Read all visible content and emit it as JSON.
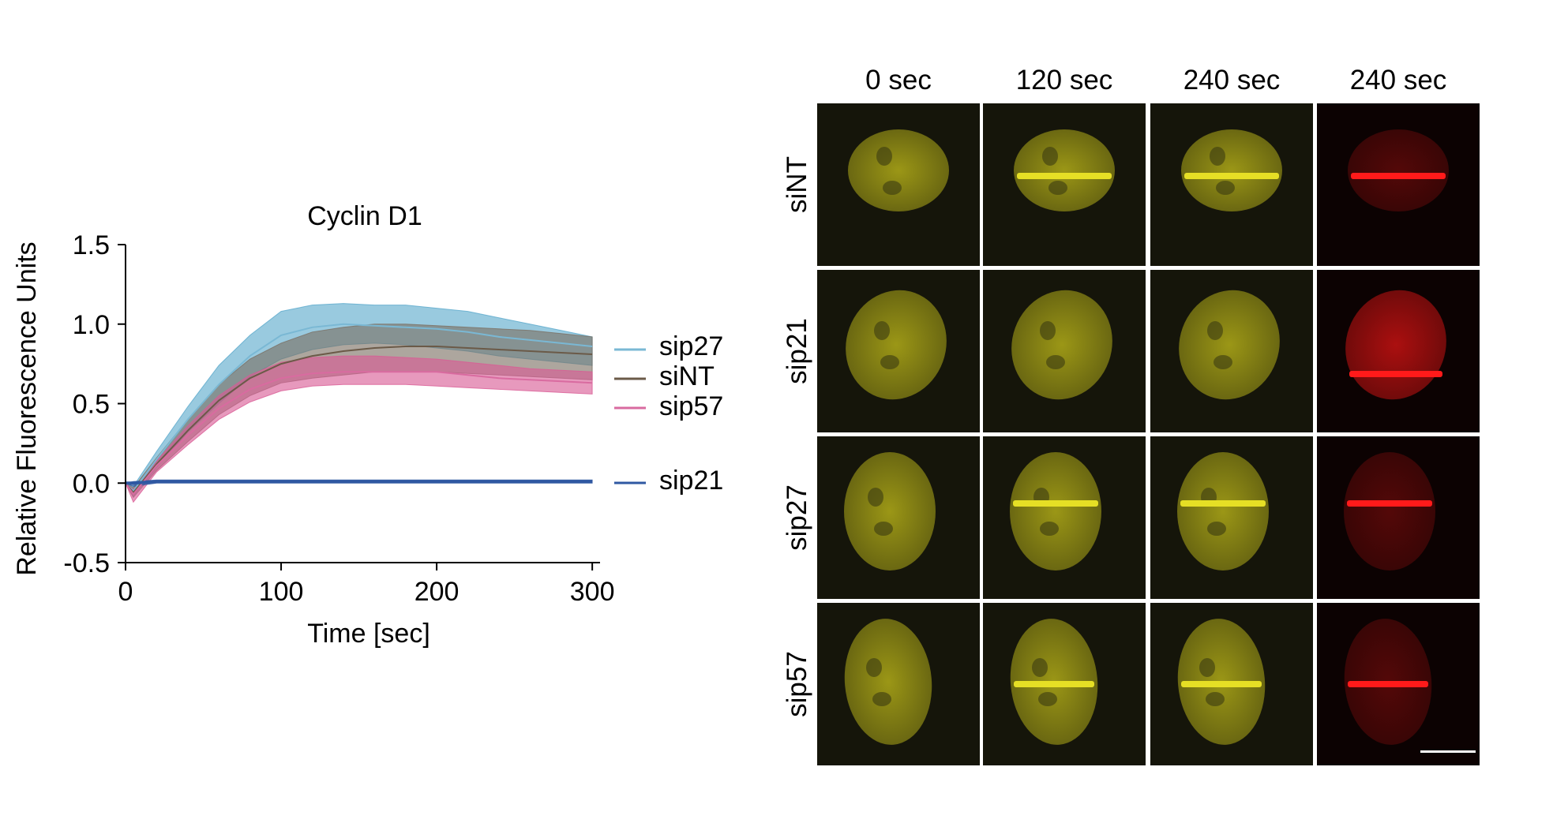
{
  "chart_data": {
    "type": "area",
    "title": "Cyclin D1",
    "xlabel": "Time [sec]",
    "ylabel": "Relative Fluorescence Units",
    "xlim": [
      0,
      305
    ],
    "ylim": [
      -0.5,
      1.5
    ],
    "xticks": [
      "0",
      "100",
      "200",
      "300"
    ],
    "yticks": [
      "1.5",
      "1.0",
      "0.5",
      "0.0",
      "-0.5"
    ],
    "legend_placement": "right",
    "x": [
      0,
      5,
      20,
      40,
      60,
      80,
      100,
      120,
      140,
      160,
      180,
      200,
      220,
      240,
      260,
      280,
      300
    ],
    "series": [
      {
        "name": "sip27",
        "color": "#7ab8d4",
        "band_color": "#5aa9cc",
        "mean": [
          0,
          -0.05,
          0.15,
          0.4,
          0.62,
          0.8,
          0.93,
          0.98,
          1.0,
          0.99,
          0.98,
          0.97,
          0.95,
          0.92,
          0.9,
          0.88,
          0.86
        ],
        "upper": [
          0,
          -0.02,
          0.2,
          0.48,
          0.74,
          0.93,
          1.08,
          1.12,
          1.13,
          1.12,
          1.12,
          1.1,
          1.08,
          1.04,
          1.0,
          0.96,
          0.92
        ],
        "lower": [
          0,
          -0.08,
          0.1,
          0.32,
          0.5,
          0.67,
          0.78,
          0.84,
          0.87,
          0.88,
          0.87,
          0.85,
          0.83,
          0.8,
          0.78,
          0.76,
          0.74
        ]
      },
      {
        "name": "siNT",
        "color": "#6b5a48",
        "band_color": "#7a6f63",
        "mean": [
          0,
          -0.06,
          0.12,
          0.33,
          0.52,
          0.66,
          0.75,
          0.8,
          0.83,
          0.85,
          0.86,
          0.86,
          0.85,
          0.84,
          0.83,
          0.82,
          0.81
        ],
        "upper": [
          0,
          -0.03,
          0.16,
          0.4,
          0.62,
          0.78,
          0.88,
          0.95,
          0.98,
          1.0,
          1.0,
          0.99,
          0.98,
          0.97,
          0.96,
          0.94,
          0.92
        ],
        "lower": [
          0,
          -0.09,
          0.08,
          0.26,
          0.43,
          0.55,
          0.63,
          0.66,
          0.68,
          0.7,
          0.7,
          0.7,
          0.69,
          0.68,
          0.67,
          0.66,
          0.65
        ]
      },
      {
        "name": "sip57",
        "color": "#d96ba0",
        "band_color": "#d95b95",
        "mean": [
          0,
          -0.07,
          0.11,
          0.3,
          0.47,
          0.59,
          0.66,
          0.69,
          0.7,
          0.7,
          0.7,
          0.7,
          0.68,
          0.66,
          0.65,
          0.64,
          0.63
        ],
        "upper": [
          0,
          -0.04,
          0.14,
          0.36,
          0.55,
          0.68,
          0.76,
          0.79,
          0.8,
          0.8,
          0.79,
          0.78,
          0.76,
          0.74,
          0.72,
          0.71,
          0.7
        ],
        "lower": [
          0,
          -0.12,
          0.07,
          0.24,
          0.4,
          0.51,
          0.58,
          0.61,
          0.62,
          0.62,
          0.62,
          0.61,
          0.6,
          0.59,
          0.58,
          0.57,
          0.56
        ]
      },
      {
        "name": "sip21",
        "color": "#2f58a2",
        "band_color": "#2f58a2",
        "mean": [
          0,
          0.0,
          0.01,
          0.01,
          0.01,
          0.01,
          0.01,
          0.01,
          0.01,
          0.01,
          0.01,
          0.01,
          0.01,
          0.01,
          0.01,
          0.01,
          0.01
        ],
        "upper": [
          0,
          0.01,
          0.02,
          0.02,
          0.02,
          0.02,
          0.02,
          0.02,
          0.02,
          0.02,
          0.02,
          0.02,
          0.02,
          0.02,
          0.02,
          0.02,
          0.02
        ],
        "lower": [
          0,
          -0.02,
          0.0,
          0.0,
          0.0,
          0.0,
          0.0,
          0.0,
          0.0,
          0.0,
          0.0,
          0.0,
          0.0,
          0.0,
          0.0,
          0.0,
          0.0
        ]
      }
    ]
  },
  "micrograph_panel": {
    "column_labels": [
      "0 sec",
      "120 sec",
      "240 sec",
      "240 sec"
    ],
    "row_labels": [
      "siNT",
      "sip21",
      "sip27",
      "sip57"
    ],
    "channel_colors": {
      "yellow": "#c8c21a",
      "red": "#e01414"
    },
    "rows": [
      {
        "label": "siNT",
        "stripe_in_columns": [
          1,
          2,
          3
        ]
      },
      {
        "label": "sip21",
        "stripe_in_columns": [
          3
        ]
      },
      {
        "label": "sip27",
        "stripe_in_columns": [
          1,
          2,
          3
        ]
      },
      {
        "label": "sip57",
        "stripe_in_columns": [
          1,
          2,
          3
        ]
      }
    ],
    "scale_bar": true
  }
}
